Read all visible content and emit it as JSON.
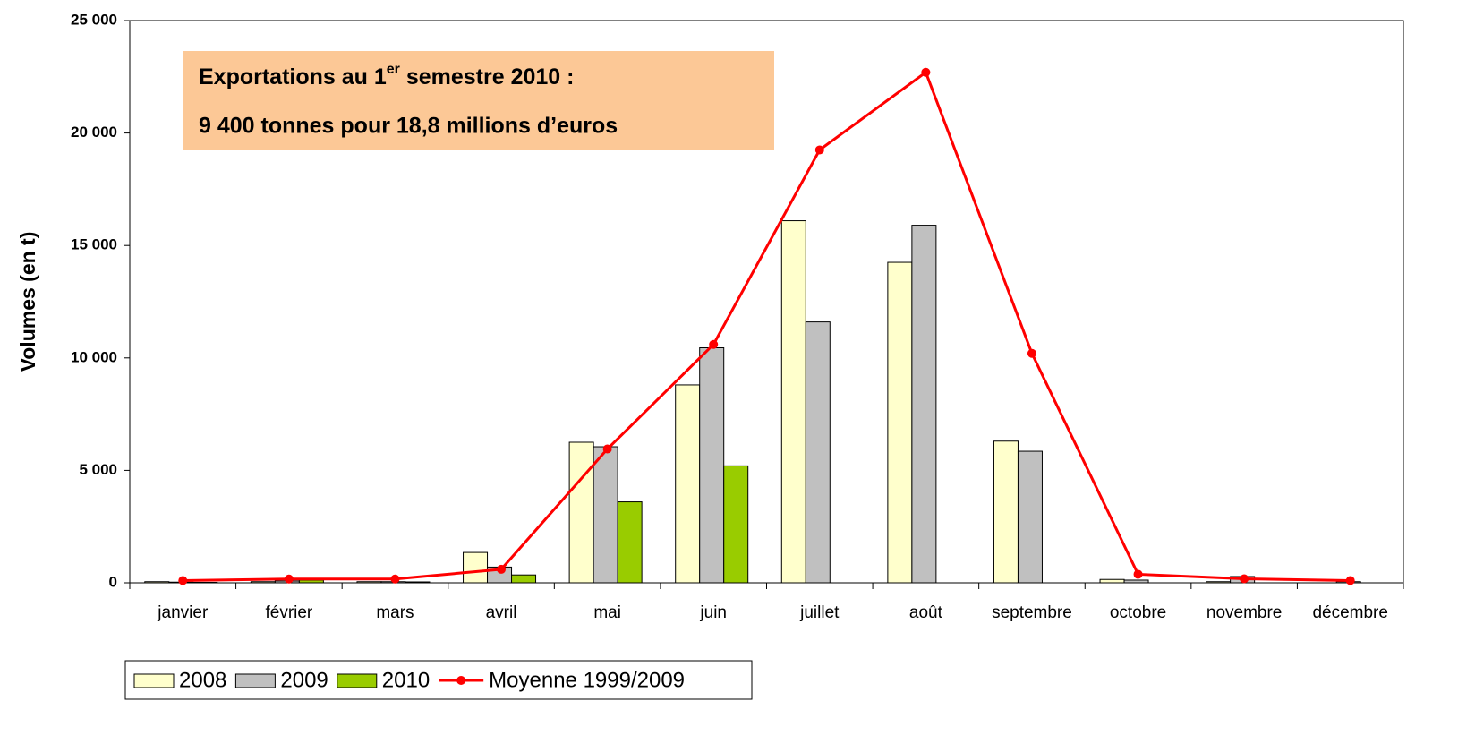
{
  "chart_data": {
    "type": "bar",
    "ylabel": "Volumes (en t)",
    "annotation": {
      "line1": [
        "Exportations au 1",
        "er",
        " semestre 2010 :"
      ],
      "line2": "9 400 tonnes pour 18,8 millions d’euros"
    },
    "categories": [
      "janvier",
      "février",
      "mars",
      "avril",
      "mai",
      "juin",
      "juillet",
      "août",
      "septembre",
      "octobre",
      "novembre",
      "décembre"
    ],
    "series": [
      {
        "name": "2008",
        "type": "bar",
        "color": "#ffffcc",
        "values": [
          50,
          50,
          50,
          1350,
          6250,
          8800,
          16100,
          14250,
          6300,
          150,
          50,
          0
        ]
      },
      {
        "name": "2009",
        "type": "bar",
        "color": "#c0c0c0",
        "values": [
          30,
          80,
          50,
          700,
          6050,
          10450,
          11600,
          15900,
          5850,
          120,
          280,
          50
        ]
      },
      {
        "name": "2010",
        "type": "bar",
        "color": "#99cc00",
        "values": [
          20,
          120,
          40,
          350,
          3600,
          5200,
          null,
          null,
          null,
          null,
          null,
          null
        ]
      },
      {
        "name": "Moyenne 1999/2009",
        "type": "line",
        "color": "#ff0000",
        "values": [
          100,
          170,
          170,
          600,
          5950,
          10600,
          19250,
          22700,
          10200,
          380,
          180,
          100
        ]
      }
    ],
    "ylim": [
      0,
      25000
    ],
    "yticks": [
      0,
      {
        "value": 5000,
        "label": "5 000"
      },
      {
        "value": 10000,
        "label": "10 000"
      },
      {
        "value": 15000,
        "label": "15 000"
      },
      {
        "value": 20000,
        "label": "20 000"
      },
      {
        "value": 25000,
        "label": "25 000"
      }
    ],
    "legend": "bottom-left"
  }
}
